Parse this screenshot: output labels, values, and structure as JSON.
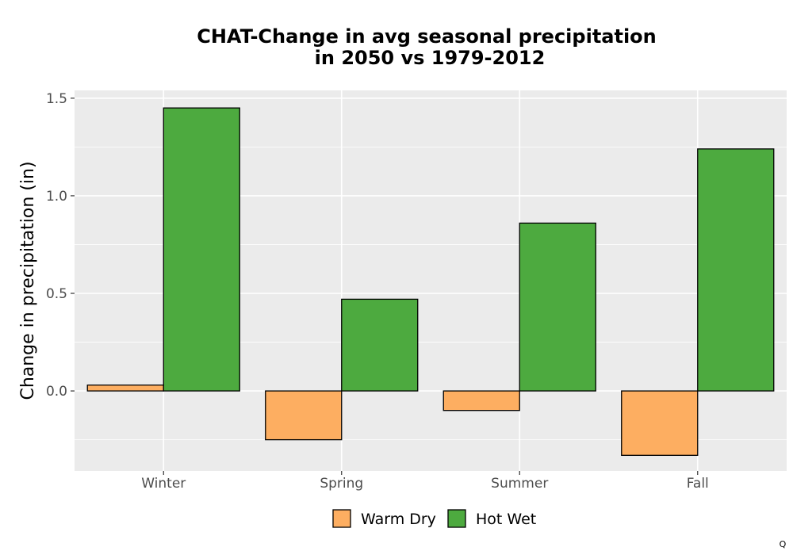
{
  "chart_data": {
    "type": "bar",
    "title": "CHAT-Change in avg seasonal precipitation",
    "subtitle": "in 2050 vs 1979-2012",
    "xlabel": "",
    "ylabel": "Change in precipitation (in)",
    "categories": [
      "Winter",
      "Spring",
      "Summer",
      "Fall"
    ],
    "series": [
      {
        "name": "Warm Dry",
        "color": "#FDAE61",
        "values": [
          0.03,
          -0.25,
          -0.1,
          -0.33
        ]
      },
      {
        "name": "Hot Wet",
        "color": "#4DAA3F",
        "values": [
          1.45,
          0.47,
          0.86,
          1.24
        ]
      }
    ],
    "ylim": [
      -0.41,
      1.54
    ],
    "yticks": [
      0.0,
      0.5,
      1.0,
      1.5
    ],
    "ytick_labels": [
      "0.0",
      "0.5",
      "1.0",
      "1.5"
    ],
    "grid": true,
    "panel_color": "#EBEBEB",
    "legend_position": "bottom"
  },
  "corner_mark": "Q"
}
